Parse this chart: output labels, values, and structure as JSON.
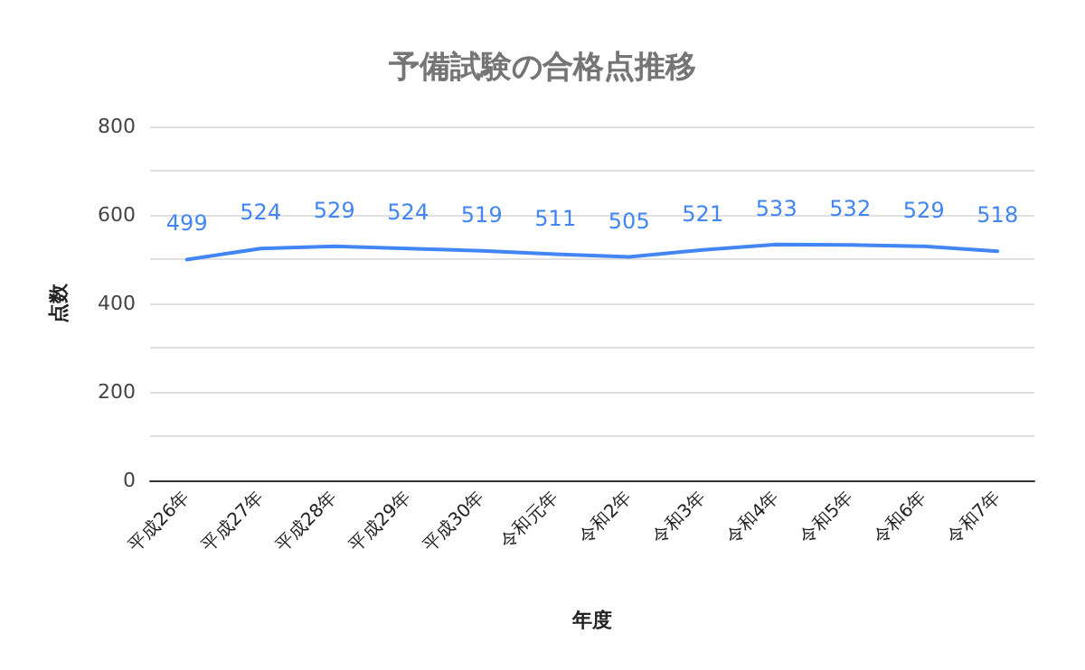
{
  "chart_data": {
    "type": "line",
    "title": "予備試験の合格点推移",
    "xlabel": "年度",
    "ylabel": "点数",
    "categories": [
      "平成26年",
      "平成27年",
      "平成28年",
      "平成29年",
      "平成30年",
      "令和元年",
      "令和2年",
      "令和3年",
      "令和4年",
      "令和5年",
      "令和6年",
      "令和7年"
    ],
    "series": [
      {
        "color": "#4285f4",
        "values": [
          499,
          524,
          529,
          524,
          519,
          511,
          505,
          521,
          533,
          532,
          529,
          518
        ]
      }
    ],
    "ylim": [
      0,
      800
    ],
    "yticks": [
      0,
      {
        "value": 100,
        "label": null
      },
      200,
      {
        "value": 300,
        "label": null
      },
      400,
      {
        "value": 500,
        "label": null
      },
      600,
      {
        "value": 700,
        "label": null
      },
      800
    ],
    "grid": "y",
    "data_labels": true,
    "marker": "none",
    "line_style": "solid"
  }
}
